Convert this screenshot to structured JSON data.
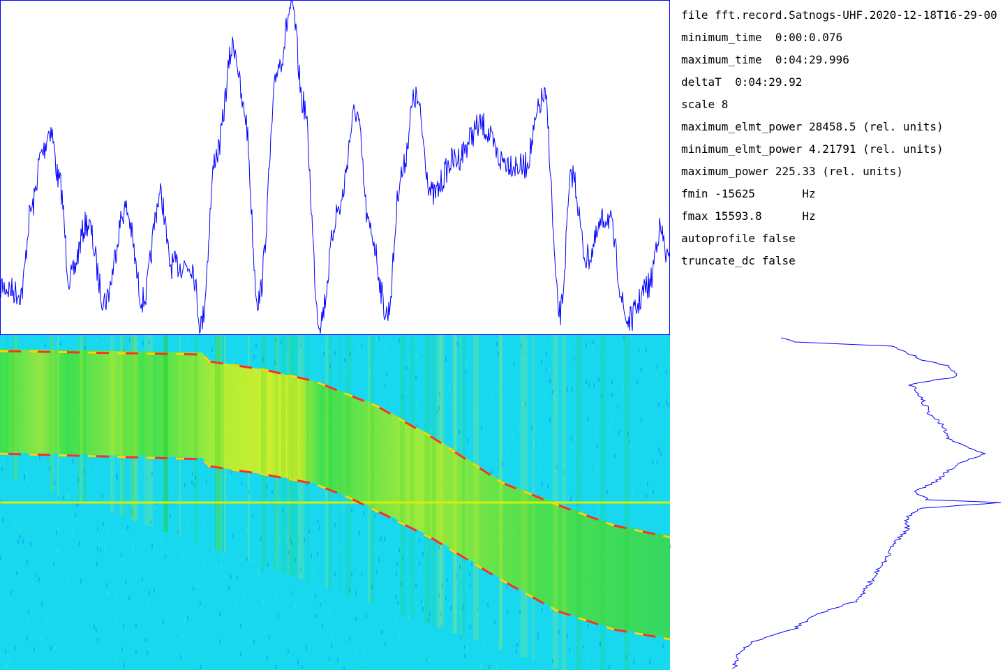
{
  "info": {
    "lines": [
      "file fft.record.Satnogs-UHF.2020-12-18T16-29-00",
      "minimum_time  0:00:0.076",
      "maximum_time  0:04:29.996",
      "deltaT  0:04:29.92",
      "scale 8",
      "maximum_elmt_power 28458.5 (rel. units)",
      "minimum_elmt_power 4.21791 (rel. units)",
      "maximum_power 225.33 (rel. units)",
      "fmin -15625       Hz",
      "fmax 15593.8      Hz",
      "autoprofile false",
      "truncate_dc false"
    ]
  }
}
